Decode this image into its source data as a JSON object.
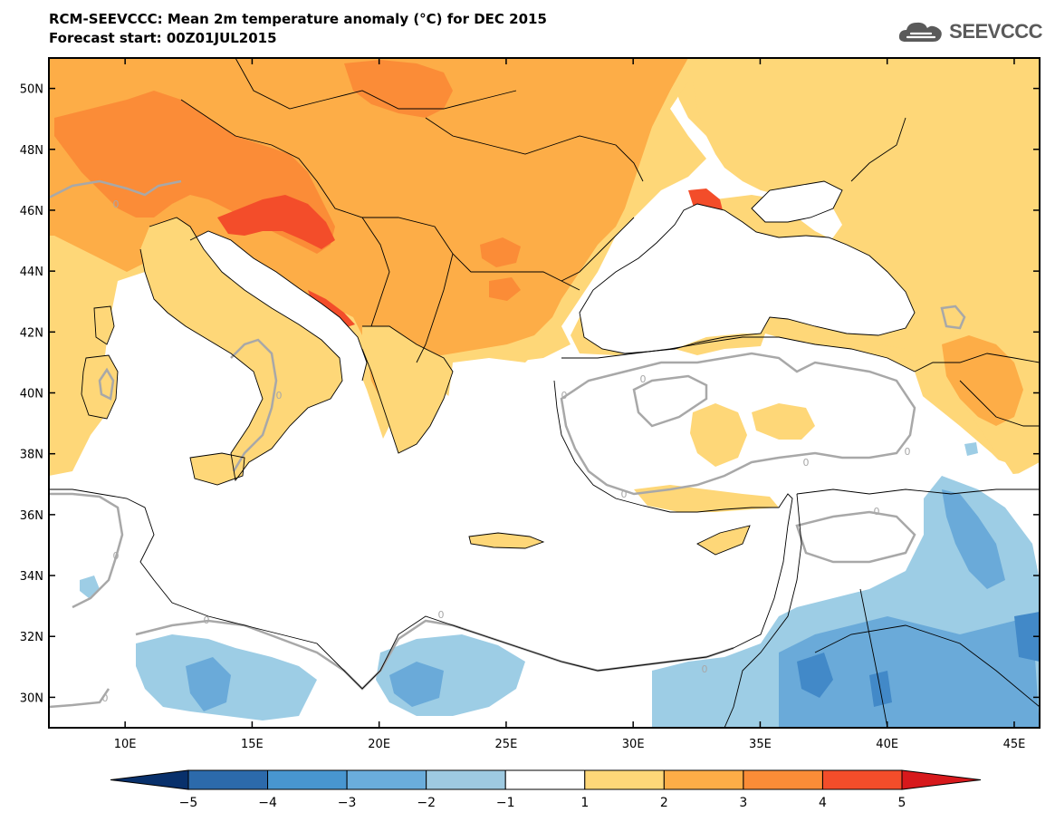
{
  "header": {
    "title": "RCM-SEEVCCC: Mean 2m temperature anomaly (°C) for DEC 2015",
    "subtitle": "Forecast start: 00Z01JUL2015",
    "logo_text": "SEEVCCC",
    "logo_icon": "cloud-icon"
  },
  "map": {
    "lon_range": [
      7,
      46
    ],
    "lat_range": [
      29,
      51
    ],
    "lat_ticks": [
      "50N",
      "48N",
      "46N",
      "44N",
      "42N",
      "40N",
      "38N",
      "36N",
      "34N",
      "32N",
      "30N"
    ],
    "lon_ticks": [
      "10E",
      "15E",
      "20E",
      "25E",
      "30E",
      "35E",
      "40E",
      "45E"
    ],
    "contour_label": "0",
    "colors": {
      "land_warm_1": "#fed778",
      "land_warm_2": "#fdad47",
      "land_warm_3": "#fb8c37",
      "land_warm_4": "#f34d2a",
      "cool_1": "#9dcde5",
      "cool_2": "#6aaad9",
      "cool_3": "#4289c8",
      "sea": "#ffffff",
      "contour": "#a8a8a8"
    }
  },
  "colorbar": {
    "labels": [
      "−5",
      "−4",
      "−3",
      "−2",
      "−1",
      "1",
      "2",
      "3",
      "4",
      "5"
    ],
    "colors": [
      "#08306b",
      "#2c6aab",
      "#4896d0",
      "#6aaddc",
      "#9ecae1",
      "#ffffff",
      "#fed778",
      "#fdad47",
      "#fb8c37",
      "#f34d2a",
      "#d7191c"
    ]
  }
}
